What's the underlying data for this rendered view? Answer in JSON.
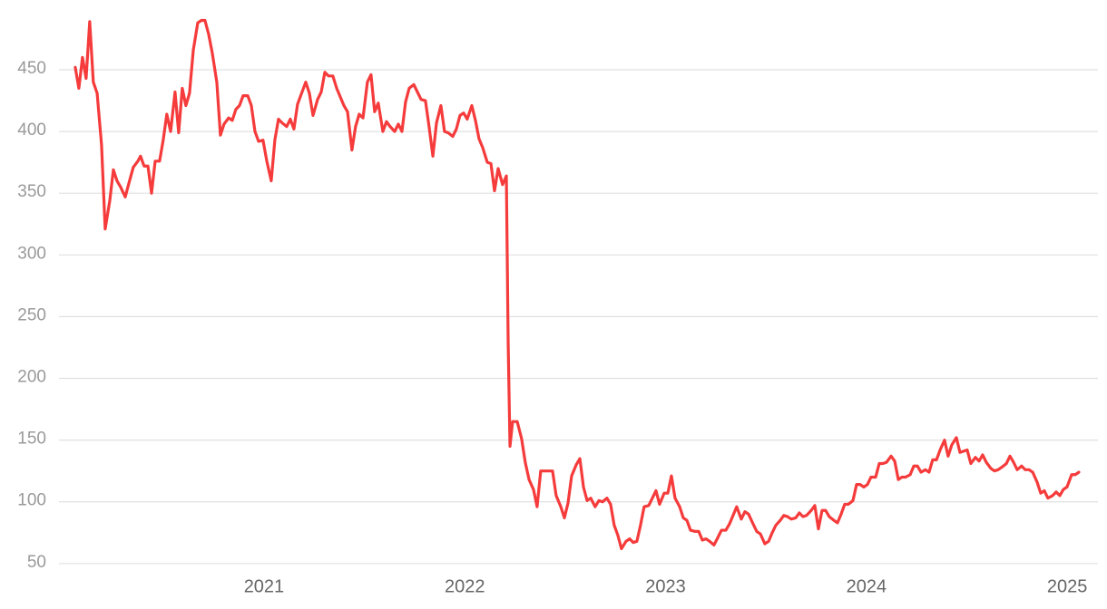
{
  "chart_data": {
    "type": "line",
    "x": [
      2020.06,
      2020.078,
      2020.096,
      2020.114,
      2020.132,
      2020.15,
      2020.169,
      2020.191,
      2020.209,
      2020.232,
      2020.25,
      2020.268,
      2020.286,
      2020.309,
      2020.327,
      2020.349,
      2020.372,
      2020.385,
      2020.403,
      2020.422,
      2020.44,
      2020.458,
      2020.48,
      2020.498,
      2020.516,
      2020.535,
      2020.557,
      2020.575,
      2020.593,
      2020.611,
      2020.629,
      2020.648,
      2020.67,
      2020.688,
      2020.706,
      2020.724,
      2020.742,
      2020.765,
      2020.783,
      2020.801,
      2020.824,
      2020.842,
      2020.86,
      2020.878,
      2020.896,
      2020.919,
      2020.937,
      2020.955,
      2020.973,
      2020.995,
      2021.014,
      2021.036,
      2021.054,
      2021.072,
      2021.09,
      2021.113,
      2021.131,
      2021.149,
      2021.167,
      2021.185,
      2021.208,
      2021.226,
      2021.244,
      2021.267,
      2021.285,
      2021.303,
      2021.321,
      2021.343,
      2021.362,
      2021.38,
      2021.398,
      2021.416,
      2021.438,
      2021.456,
      2021.474,
      2021.493,
      2021.515,
      2021.533,
      2021.551,
      2021.569,
      2021.592,
      2021.61,
      2021.628,
      2021.651,
      2021.669,
      2021.687,
      2021.705,
      2021.723,
      2021.746,
      2021.764,
      2021.782,
      2021.804,
      2021.822,
      2021.841,
      2021.859,
      2021.881,
      2021.899,
      2021.917,
      2021.94,
      2021.958,
      2021.976,
      2021.994,
      2022.012,
      2022.035,
      2022.053,
      2022.071,
      2022.089,
      2022.112,
      2022.13,
      2022.148,
      2022.166,
      2022.188,
      2022.207,
      2022.216,
      2022.225,
      2022.238,
      2022.261,
      2022.283,
      2022.301,
      2022.32,
      2022.342,
      2022.36,
      2022.378,
      2022.401,
      2022.419,
      2022.437,
      2022.455,
      2022.478,
      2022.496,
      2022.514,
      2022.532,
      2022.555,
      2022.573,
      2022.591,
      2022.609,
      2022.627,
      2022.649,
      2022.668,
      2022.686,
      2022.708,
      2022.726,
      2022.744,
      2022.762,
      2022.78,
      2022.803,
      2022.821,
      2022.839,
      2022.857,
      2022.875,
      2022.893,
      2022.916,
      2022.934,
      2022.952,
      2022.97,
      2022.993,
      2023.011,
      2023.029,
      2023.047,
      2023.07,
      2023.088,
      2023.106,
      2023.124,
      2023.147,
      2023.165,
      2023.183,
      2023.201,
      2023.219,
      2023.241,
      2023.26,
      2023.278,
      2023.3,
      2023.318,
      2023.336,
      2023.354,
      2023.377,
      2023.395,
      2023.413,
      2023.436,
      2023.454,
      2023.472,
      2023.494,
      2023.513,
      2023.531,
      2023.549,
      2023.571,
      2023.589,
      2023.607,
      2023.626,
      2023.648,
      2023.666,
      2023.684,
      2023.702,
      2023.725,
      2023.743,
      2023.761,
      2023.779,
      2023.797,
      2023.815,
      2023.838,
      2023.856,
      2023.874,
      2023.892,
      2023.91,
      2023.933,
      2023.951,
      2023.969,
      2023.987,
      2024.005,
      2024.023,
      2024.046,
      2024.064,
      2024.082,
      2024.1,
      2024.123,
      2024.141,
      2024.159,
      2024.177,
      2024.195,
      2024.218,
      2024.236,
      2024.254,
      2024.272,
      2024.294,
      2024.312,
      2024.33,
      2024.349,
      2024.367,
      2024.389,
      2024.407,
      2024.425,
      2024.448,
      2024.466,
      2024.484,
      2024.502,
      2024.52,
      2024.543,
      2024.561,
      2024.579,
      2024.597,
      2024.62,
      2024.638,
      2024.656,
      2024.674,
      2024.697,
      2024.715,
      2024.733,
      2024.751,
      2024.773,
      2024.791,
      2024.81,
      2024.828,
      2024.85,
      2024.868,
      2024.886,
      2024.904,
      2024.927,
      2024.945,
      2024.963,
      2024.981,
      2024.999,
      2025.022,
      2025.04,
      2025.058
    ],
    "values": [
      452,
      435,
      460,
      443,
      489,
      440,
      431,
      389,
      321,
      344,
      369,
      360,
      355,
      347,
      358,
      371,
      376,
      380,
      372,
      372,
      350,
      376,
      376,
      393,
      414,
      400,
      432,
      399,
      435,
      421,
      431,
      466,
      488,
      490,
      490,
      479,
      464,
      440,
      397,
      406,
      411,
      409,
      418,
      421,
      429,
      429,
      421,
      400,
      392,
      393,
      376,
      360,
      393,
      410,
      407,
      404,
      410,
      402,
      422,
      430,
      440,
      431,
      413,
      426,
      432,
      448,
      445,
      445,
      435,
      428,
      421,
      416,
      385,
      404,
      414,
      411,
      440,
      446,
      416,
      423,
      400,
      408,
      404,
      400,
      406,
      400,
      424,
      435,
      438,
      432,
      426,
      425,
      404,
      380,
      407,
      421,
      400,
      399,
      396,
      402,
      413,
      415,
      410,
      421,
      409,
      394,
      387,
      375,
      374,
      352,
      370,
      357,
      364,
      228,
      145,
      165,
      165,
      151,
      132,
      118,
      110,
      96,
      125,
      125,
      125,
      125,
      105,
      96,
      87,
      99,
      121,
      130,
      135,
      112,
      101,
      103,
      96,
      101,
      100,
      103,
      98,
      81,
      73,
      62,
      68,
      70,
      67,
      68,
      81,
      96,
      97,
      103,
      109,
      98,
      107,
      107,
      121,
      103,
      96,
      87,
      85,
      77,
      76,
      76,
      69,
      70,
      68,
      65,
      71,
      77,
      77,
      82,
      89,
      96,
      86,
      92,
      90,
      82,
      76,
      74,
      66,
      68,
      75,
      81,
      85,
      89,
      88,
      86,
      87,
      91,
      88,
      89,
      93,
      97,
      78,
      93,
      93,
      88,
      85,
      83,
      90,
      98,
      98,
      101,
      114,
      114,
      112,
      114,
      120,
      120,
      131,
      131,
      132,
      137,
      133,
      118,
      120,
      120,
      122,
      129,
      129,
      124,
      126,
      124,
      134,
      134,
      142,
      150,
      137,
      146,
      152,
      140,
      141,
      142,
      131,
      136,
      133,
      138,
      132,
      127,
      125,
      126,
      128,
      131,
      137,
      132,
      126,
      129,
      126,
      126,
      124,
      116,
      107,
      109,
      103,
      105,
      108,
      105,
      110,
      112,
      122,
      122,
      124
    ],
    "color": "#f53b3b",
    "xlim": [
      2019.979,
      2025.153
    ],
    "xticks": [
      2021,
      2022,
      2023,
      2024,
      2025
    ],
    "ylim": [
      44,
      495
    ],
    "yticks": [
      50,
      100,
      150,
      200,
      250,
      300,
      350,
      400,
      450
    ],
    "grid": true
  }
}
